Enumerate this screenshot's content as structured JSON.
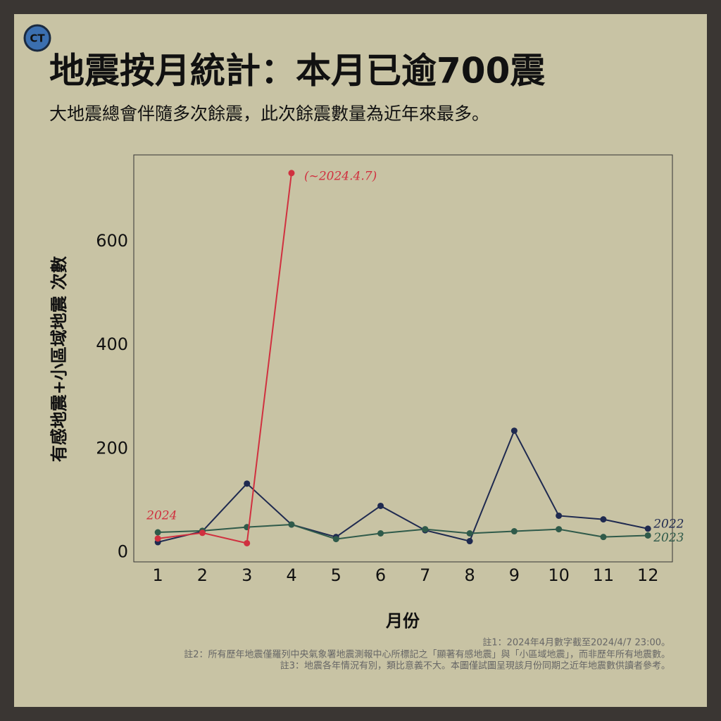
{
  "header": {
    "logo": "CT"
  },
  "chart_data": {
    "type": "line",
    "title": "地震按月統計：本月已逾700震",
    "subtitle": "大地震總會伴隨多次餘震，此次餘震數量為近年來最多。",
    "y_label": "有感地震+小區域地震 次數",
    "x_label": "月份",
    "x": [
      1,
      2,
      3,
      4,
      5,
      6,
      7,
      8,
      9,
      10,
      11,
      12
    ],
    "xlim": [
      0.46,
      12.55
    ],
    "xticks": [
      1,
      2,
      3,
      4,
      5,
      6,
      7,
      8,
      9,
      10,
      11,
      12
    ],
    "ylim": [
      -18,
      767
    ],
    "yticks": [
      0,
      200,
      400,
      600
    ],
    "grid": false,
    "series": [
      {
        "name": "2022",
        "color": "#1f2a50",
        "values": [
          20,
          41,
          133,
          54,
          30,
          90,
          43,
          22,
          235,
          71,
          64,
          46
        ]
      },
      {
        "name": "2023",
        "color": "#2f5a4a",
        "values": [
          39,
          42,
          49,
          54,
          26,
          37,
          45,
          37,
          41,
          45,
          30,
          33
        ]
      },
      {
        "name": "2024",
        "color": "#d0303f",
        "values": [
          27,
          38,
          18,
          732,
          null,
          null,
          null,
          null,
          null,
          null,
          null,
          null
        ]
      }
    ],
    "annotations": [
      "(~2024.4.7)"
    ],
    "notes": [
      "註1：2024年4月數字截至2024/4/7 23:00。",
      "註2：所有歷年地震僅羅列中央氣象署地震測報中心所標記之「顯著有感地震」與「小區域地震」，而非歷年所有地震數。",
      "註3：地震各年情況有別，類比意義不大。本圖僅試圖呈現該月份同期之近年地震數供讀者參考。"
    ]
  }
}
